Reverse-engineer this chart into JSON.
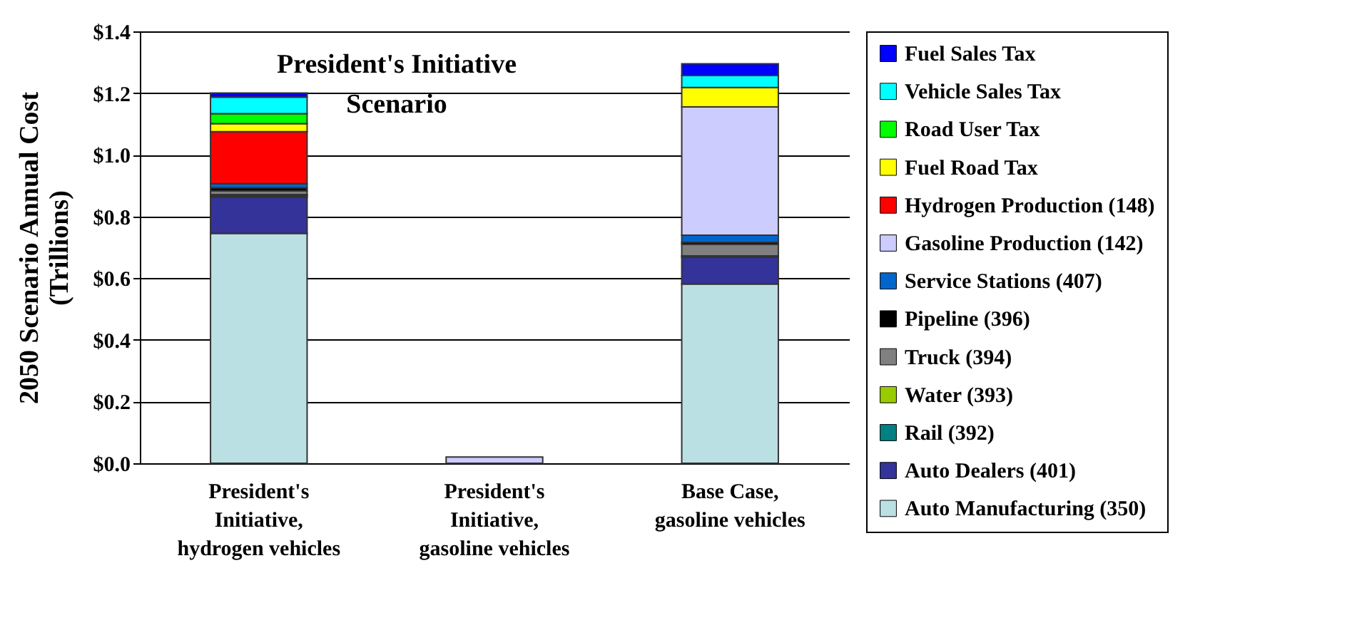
{
  "chart_data": {
    "type": "bar",
    "stacked": true,
    "ylabel": "2050 Scenario Annual Cost (Trillions)",
    "categories": [
      "President's Initiative, hydrogen vehicles",
      "President's Initiative, gasoline vehicles",
      "Base Case, gasoline vehicles"
    ],
    "series": [
      {
        "name": "Auto Manufacturing (350)",
        "color": "#bbe0e3",
        "values": [
          0.745,
          0,
          0.581
        ]
      },
      {
        "name": "Auto Dealers (401)",
        "color": "#333399",
        "values": [
          0.118,
          null,
          0.087
        ]
      },
      {
        "name": "Rail (392)",
        "color": "#008080",
        "values": [
          0.004,
          0,
          null
        ]
      },
      {
        "name": "Water (393)",
        "color": "#99cc00",
        "values": [
          0.004,
          0,
          0.004
        ]
      },
      {
        "name": "Truck (394)",
        "color": "#808080",
        "values": [
          0.012,
          0,
          0.038
        ]
      },
      {
        "name": "Pipeline (396)",
        "color": "#000000",
        "values": [
          0.01,
          0,
          0.006
        ]
      },
      {
        "name": "Service Stations (407)",
        "color": "#0066cc",
        "values": [
          0.013,
          0,
          0.023
        ]
      },
      {
        "name": "Gasoline Production (142)",
        "color": "#ccccff",
        "values": [
          0,
          0.02,
          0.416
        ]
      },
      {
        "name": "Hydrogen Production (148)",
        "color": "#ff0000",
        "values": [
          0.169,
          0,
          0
        ]
      },
      {
        "name": "Fuel Road Tax",
        "color": "#ffff00",
        "values": [
          0.026,
          0,
          0.063
        ]
      },
      {
        "name": "Road User Tax",
        "color": "#00ff00",
        "values": [
          0.032,
          0,
          0
        ]
      },
      {
        "name": "Vehicle Sales Tax",
        "color": "#00ffff",
        "values": [
          0.054,
          0,
          0.039
        ]
      },
      {
        "name": "Fuel Sales Tax",
        "color": "#0000ff",
        "values": [
          0.013,
          0,
          0.038
        ]
      }
    ],
    "ylim": [
      0,
      1.4
    ],
    "yticks": [
      {
        "value": 0,
        "label": "$0.0"
      },
      {
        "value": 0.2,
        "label": "$0.2"
      },
      {
        "value": 0.4,
        "label": "$0.4"
      },
      {
        "value": 0.6,
        "label": "$0.6"
      },
      {
        "value": 0.8,
        "label": "$0.8"
      },
      {
        "value": 1.0,
        "label": "$1.0"
      },
      {
        "value": 1.2,
        "label": "$1.2"
      },
      {
        "value": 1.4,
        "label": "$1.4"
      }
    ],
    "grid": "y",
    "legend": "right",
    "annotations": [
      "President's Initiative Scenario"
    ]
  }
}
